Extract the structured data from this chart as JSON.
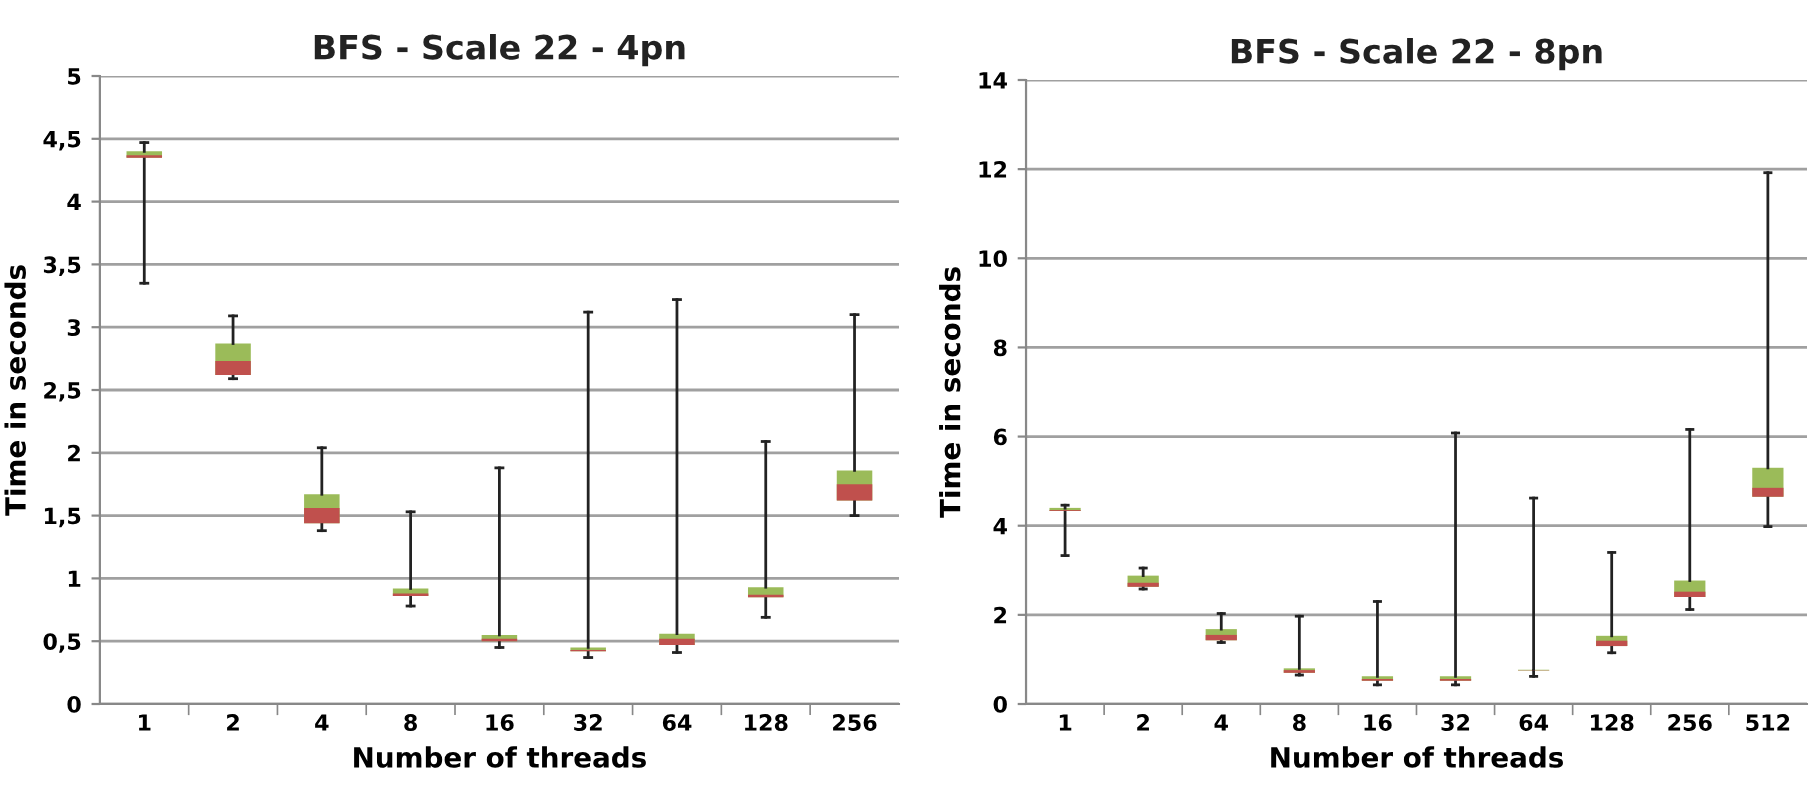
{
  "chart_data": [
    {
      "type": "box",
      "title": "BFS - Scale 22 - 4pn",
      "xlabel": "Number of threads",
      "ylabel": "Time in seconds",
      "categories": [
        "1",
        "2",
        "4",
        "8",
        "16",
        "32",
        "64",
        "128",
        "256"
      ],
      "color": "#c0504d",
      "series": [
        {
          "color": "#9bbb59",
          "boxes": [
            {
              "low": 3.35,
              "q1": 4.35,
              "median": 4.37,
              "q3": 4.4,
              "high": 4.47
            },
            {
              "low": 2.59,
              "q1": 2.62,
              "median": 2.73,
              "q3": 2.87,
              "high": 3.09
            },
            {
              "low": 1.38,
              "q1": 1.44,
              "median": 1.56,
              "q3": 1.67,
              "high": 2.04
            },
            {
              "low": 0.78,
              "q1": 0.86,
              "median": 0.88,
              "q3": 0.92,
              "high": 1.53
            },
            {
              "low": 0.45,
              "q1": 0.5,
              "median": 0.52,
              "q3": 0.55,
              "high": 1.88
            },
            {
              "low": 0.37,
              "q1": 0.42,
              "median": 0.43,
              "q3": 0.45,
              "high": 3.12
            },
            {
              "low": 0.41,
              "q1": 0.47,
              "median": 0.52,
              "q3": 0.56,
              "high": 3.22
            },
            {
              "low": 0.69,
              "q1": 0.85,
              "median": 0.87,
              "q3": 0.93,
              "high": 2.09
            },
            {
              "low": 1.5,
              "q1": 1.62,
              "median": 1.75,
              "q3": 1.86,
              "high": 3.1
            }
          ]
        }
      ],
      "ylim": [
        0,
        5
      ],
      "yticks": [
        0,
        {
          "value": 0.5,
          "label": "0,5"
        },
        1,
        {
          "value": 1.5,
          "label": "1,5"
        },
        2,
        {
          "value": 2.5,
          "label": "2,5"
        },
        3,
        {
          "value": 3.5,
          "label": "3,5"
        },
        4,
        {
          "value": 4.5,
          "label": "4,5"
        },
        5
      ],
      "grid": "y",
      "legend": false
    },
    {
      "type": "box",
      "title": "BFS - Scale 22 - 8pn",
      "xlabel": "Number of threads",
      "ylabel": "Time in seconds",
      "categories": [
        "1",
        "2",
        "4",
        "8",
        "16",
        "32",
        "64",
        "128",
        "256",
        "512"
      ],
      "color": "#c0504d",
      "series": [
        {
          "color": "#9bbb59",
          "boxes": [
            {
              "low": 3.33,
              "q1": 4.33,
              "median": 4.35,
              "q3": 4.4,
              "high": 4.46
            },
            {
              "low": 2.58,
              "q1": 2.63,
              "median": 2.72,
              "q3": 2.88,
              "high": 3.05
            },
            {
              "low": 1.38,
              "q1": 1.43,
              "median": 1.55,
              "q3": 1.68,
              "high": 2.03
            },
            {
              "low": 0.65,
              "q1": 0.7,
              "median": 0.76,
              "q3": 0.8,
              "high": 1.97
            },
            {
              "low": 0.43,
              "q1": 0.52,
              "median": 0.56,
              "q3": 0.62,
              "high": 2.3
            },
            {
              "low": 0.43,
              "q1": 0.52,
              "median": 0.56,
              "q3": 0.62,
              "high": 6.08
            },
            {
              "low": 0.62,
              "q1": 0.75,
              "median": 0.76,
              "q3": 0.77,
              "high": 4.62
            },
            {
              "low": 1.15,
              "q1": 1.3,
              "median": 1.42,
              "q3": 1.53,
              "high": 3.4
            },
            {
              "low": 2.12,
              "q1": 2.4,
              "median": 2.52,
              "q3": 2.77,
              "high": 6.16
            },
            {
              "low": 3.98,
              "q1": 4.65,
              "median": 4.85,
              "q3": 5.3,
              "high": 11.92
            }
          ]
        }
      ],
      "ylim": [
        0,
        14
      ],
      "yticks": [
        0,
        2,
        4,
        6,
        8,
        10,
        12,
        14
      ],
      "grid": "y",
      "legend": false
    }
  ]
}
